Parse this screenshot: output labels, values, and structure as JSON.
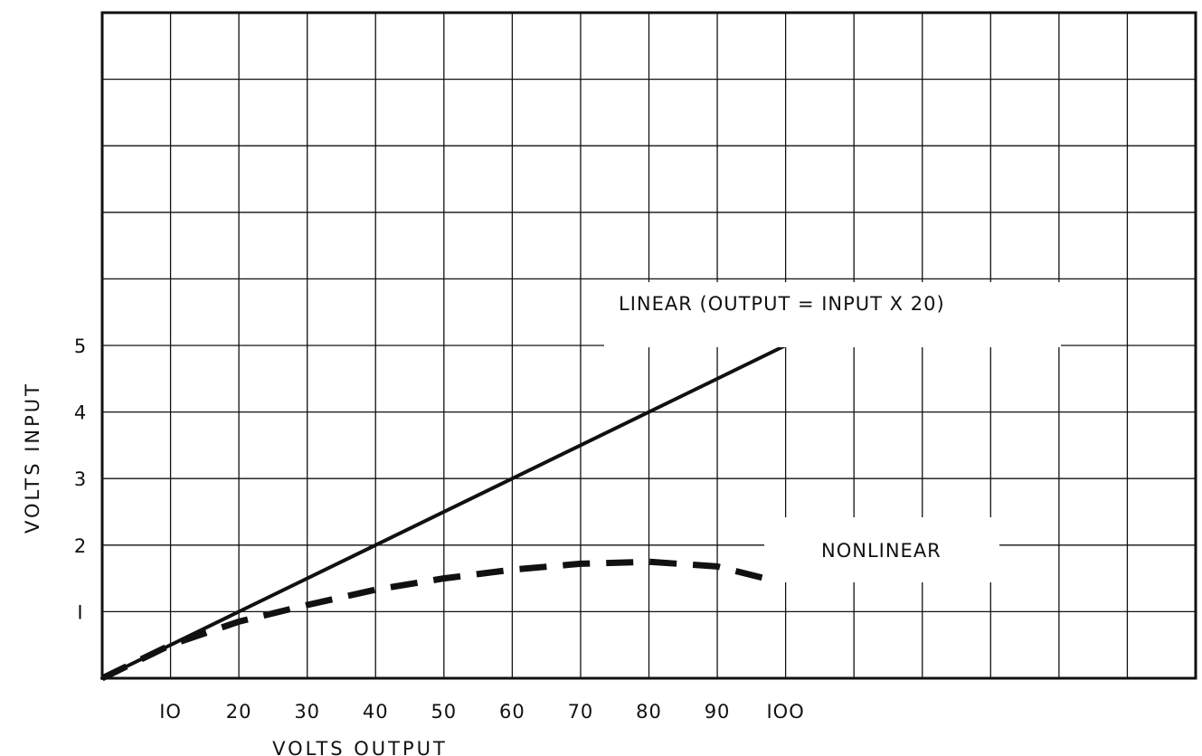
{
  "chart_data": {
    "type": "line",
    "title": "",
    "xlabel": "VOLTS OUTPUT",
    "ylabel": "VOLTS INPUT",
    "x_ticks": [
      "IO",
      "20",
      "30",
      "40",
      "50",
      "60",
      "70",
      "80",
      "90",
      "IOO"
    ],
    "y_ticks": [
      "I",
      "2",
      "3",
      "4",
      "5"
    ],
    "xlim": [
      0,
      160
    ],
    "ylim": [
      0,
      10
    ],
    "grid": true,
    "series": [
      {
        "name": "LINEAR (OUTPUT = INPUT X 20)",
        "style": "solid",
        "x": [
          0,
          100
        ],
        "y": [
          0,
          5
        ]
      },
      {
        "name": "NONLINEAR",
        "style": "dashed",
        "x": [
          0,
          10,
          20,
          30,
          40,
          50,
          60,
          70,
          80,
          90,
          97
        ],
        "y": [
          0,
          0.5,
          0.85,
          1.1,
          1.33,
          1.5,
          1.63,
          1.72,
          1.75,
          1.68,
          1.5
        ]
      }
    ],
    "annotations": [
      "LINEAR (OUTPUT = INPUT X 20)",
      "NONLINEAR"
    ]
  },
  "colors": {
    "ink": "#111111",
    "background": "#ffffff"
  }
}
